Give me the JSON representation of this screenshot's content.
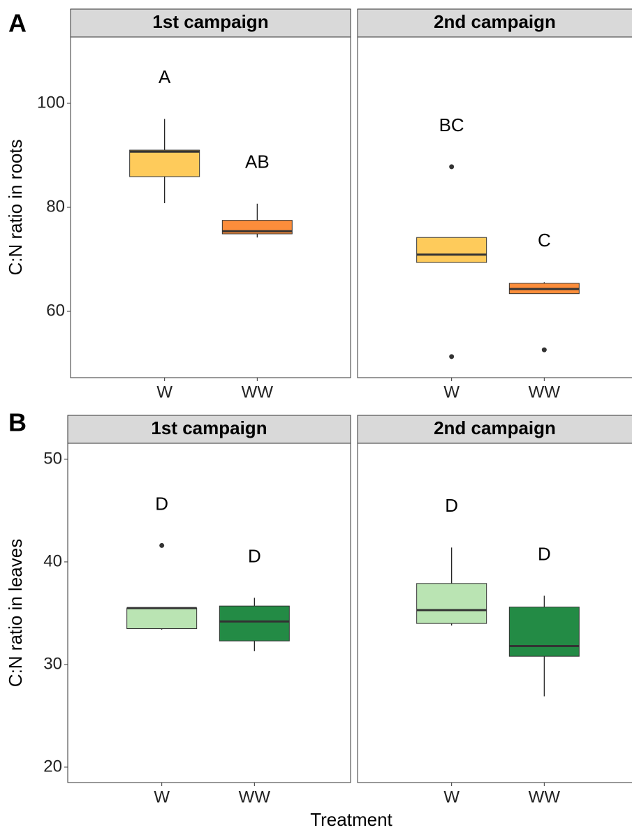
{
  "chart_data": [
    {
      "type": "box",
      "panel": "A",
      "ylabel": "C:N ratio in roots",
      "ylim": [
        47.25,
        112.75
      ],
      "yticks": [
        60,
        80,
        100
      ],
      "categories": [
        "W",
        "WW"
      ],
      "colors": [
        "#fecb5b",
        "#fc8d3b"
      ],
      "facets": [
        {
          "title": "1st campaign",
          "boxes": [
            {
              "whisker_low": 80.8,
              "q1": 85.9,
              "median": 90.7,
              "q3": 91.0,
              "whisker_high": 97.0,
              "outliers": [],
              "label": "A"
            },
            {
              "whisker_low": 74.2,
              "q1": 74.9,
              "median": 75.4,
              "q3": 77.5,
              "whisker_high": 80.7,
              "outliers": [],
              "label": "AB"
            }
          ]
        },
        {
          "title": "2nd campaign",
          "boxes": [
            {
              "whisker_low": 69.4,
              "q1": 69.4,
              "median": 70.9,
              "q3": 74.2,
              "whisker_high": 74.2,
              "outliers": [
                87.8,
                51.3
              ],
              "label": "BC"
            },
            {
              "whisker_low": 63.4,
              "q1": 63.4,
              "median": 64.3,
              "q3": 65.4,
              "whisker_high": 65.6,
              "outliers": [
                52.6
              ],
              "label": "C"
            }
          ]
        }
      ]
    },
    {
      "type": "box",
      "panel": "B",
      "ylabel": "C:N ratio in leaves",
      "xlabel": "Treatment",
      "ylim": [
        18.5,
        51.56
      ],
      "yticks": [
        20,
        30,
        40,
        50
      ],
      "categories": [
        "W",
        "WW"
      ],
      "colors": [
        "#bae4b3",
        "#238b45"
      ],
      "facets": [
        {
          "title": "1st campaign",
          "boxes": [
            {
              "whisker_low": 33.4,
              "q1": 33.5,
              "median": 35.5,
              "q3": 35.5,
              "whisker_high": 35.5,
              "outliers": [
                41.6
              ],
              "label": "D"
            },
            {
              "whisker_low": 31.3,
              "q1": 32.3,
              "median": 34.2,
              "q3": 35.7,
              "whisker_high": 36.5,
              "outliers": [],
              "label": "D"
            }
          ]
        },
        {
          "title": "2nd campaign",
          "boxes": [
            {
              "whisker_low": 33.8,
              "q1": 34.0,
              "median": 35.3,
              "q3": 37.9,
              "whisker_high": 41.4,
              "outliers": [],
              "label": "D"
            },
            {
              "whisker_low": 26.9,
              "q1": 30.8,
              "median": 31.8,
              "q3": 35.6,
              "whisker_high": 36.7,
              "outliers": [],
              "label": "D"
            }
          ]
        }
      ]
    }
  ]
}
